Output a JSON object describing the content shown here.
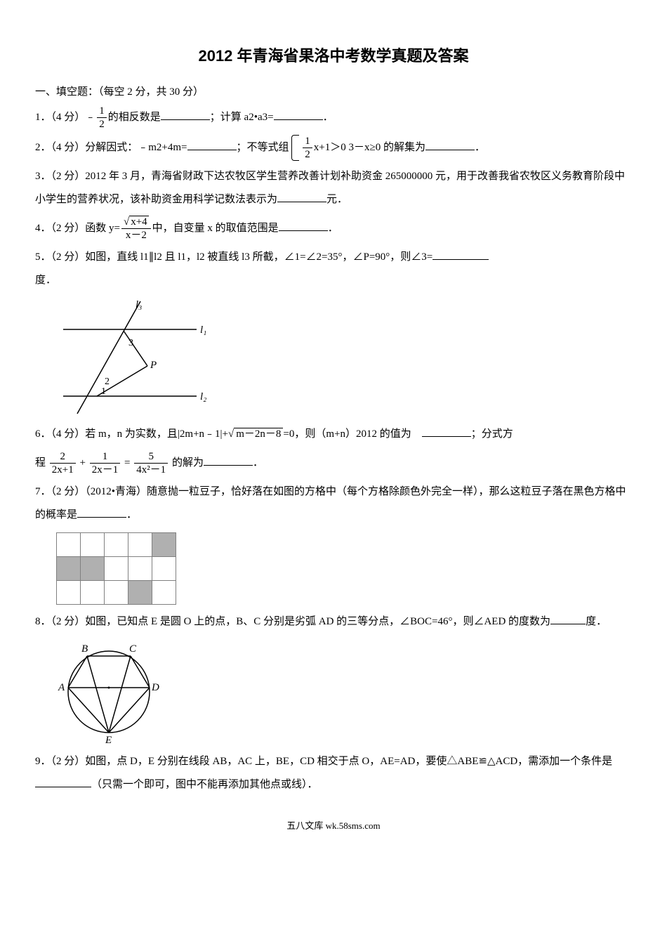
{
  "title": "2012 年青海省果洛中考数学真题及答案",
  "section1_header": "一、填空题：（每空 2 分，共 30 分）",
  "q1": {
    "label": "1．（4 分）﹣",
    "frac_num": "1",
    "frac_den": "2",
    "text_mid": "的相反数是",
    "text_after": "；计算 a2•a3=",
    "period": "．"
  },
  "q2": {
    "label": "2．（4 分）分解因式：﹣m2+4m=",
    "text_mid": "；不等式组",
    "sys1_frac_num": "1",
    "sys1_frac_den": "2",
    "sys1_rest": "x+1＞0",
    "sys2": "3－x≥0",
    "text_after": " 的解集为",
    "period": "．"
  },
  "q3": {
    "label": "3．（2 分）2012 年 3 月，青海省财政下达农牧区学生营养改善计划补助资金 265000000 元，用于改善我省农牧区义务教育阶段中小学生的营养状况，该补助资金用科学记数法表示为",
    "after": "元．"
  },
  "q4": {
    "label": "4．（2 分）函数 y=",
    "frac_num_sqrt": "x+4",
    "frac_den": "x－2",
    "text_after": "中，自变量 x 的取值范围是",
    "period": "．"
  },
  "q5": {
    "label": "5．（2 分）如图，直线 l1∥l2 且 l1，l2 被直线 l3 所截，∠1=∠2=35°，∠P=90°，则∠3=",
    "after": "度．"
  },
  "fig5": {
    "l1": "l₁",
    "l2": "l₂",
    "l3": "l₃",
    "p": "P",
    "n1": "1",
    "n2": "2",
    "n3": "3"
  },
  "q6a": {
    "label": "6．（4 分）若 m，n 为实数，且|2m+n﹣1|+",
    "sqrt_inner": "m－2n－8",
    "text_mid": "=0，则（m+n）2012 的值为　",
    "text_after": "；分式方"
  },
  "q6b": {
    "prefix": "程",
    "f1_num": "2",
    "f1_den": "2x+1",
    "plus1": "+",
    "f2_num": "1",
    "f2_den": "2x－1",
    "eq": "=",
    "f3_num": "5",
    "f3_den": "4x²－1",
    "text_after": "的解为",
    "period": "．"
  },
  "q7": {
    "label": "7．（2 分）（2012•青海）随意抛一粒豆子，恰好落在如图的方格中（每个方格除颜色外完全一样），那么这粒豆子落在黑色方格中的概率是",
    "period": "．"
  },
  "grid": {
    "rows": 3,
    "cols": 5,
    "dark_cells": [
      [
        0,
        4
      ],
      [
        1,
        0
      ],
      [
        1,
        1
      ],
      [
        2,
        3
      ]
    ],
    "cell_size": 34,
    "border_color": "#808080",
    "dark_color": "#b0b0b0",
    "light_color": "#ffffff"
  },
  "q8": {
    "label": "8．（2 分）如图，已知点 E 是圆 O 上的点，B、C 分别是劣弧 AD 的三等分点，∠BOC=46°，则∠AED 的度数为",
    "after": "度．"
  },
  "fig8": {
    "A": "A",
    "B": "B",
    "C": "C",
    "D": "D",
    "E": "E"
  },
  "q9": {
    "label": "9．（2 分）如图，点 D，E 分别在线段 AB，AC 上，BE，CD 相交于点 O，AE=AD，要使△ABE≌△ACD，需添加一个条件是",
    "after": "（只需一个即可，图中不能再添加其他点或线）．"
  },
  "footer": "五八文库 wk.58sms.com"
}
